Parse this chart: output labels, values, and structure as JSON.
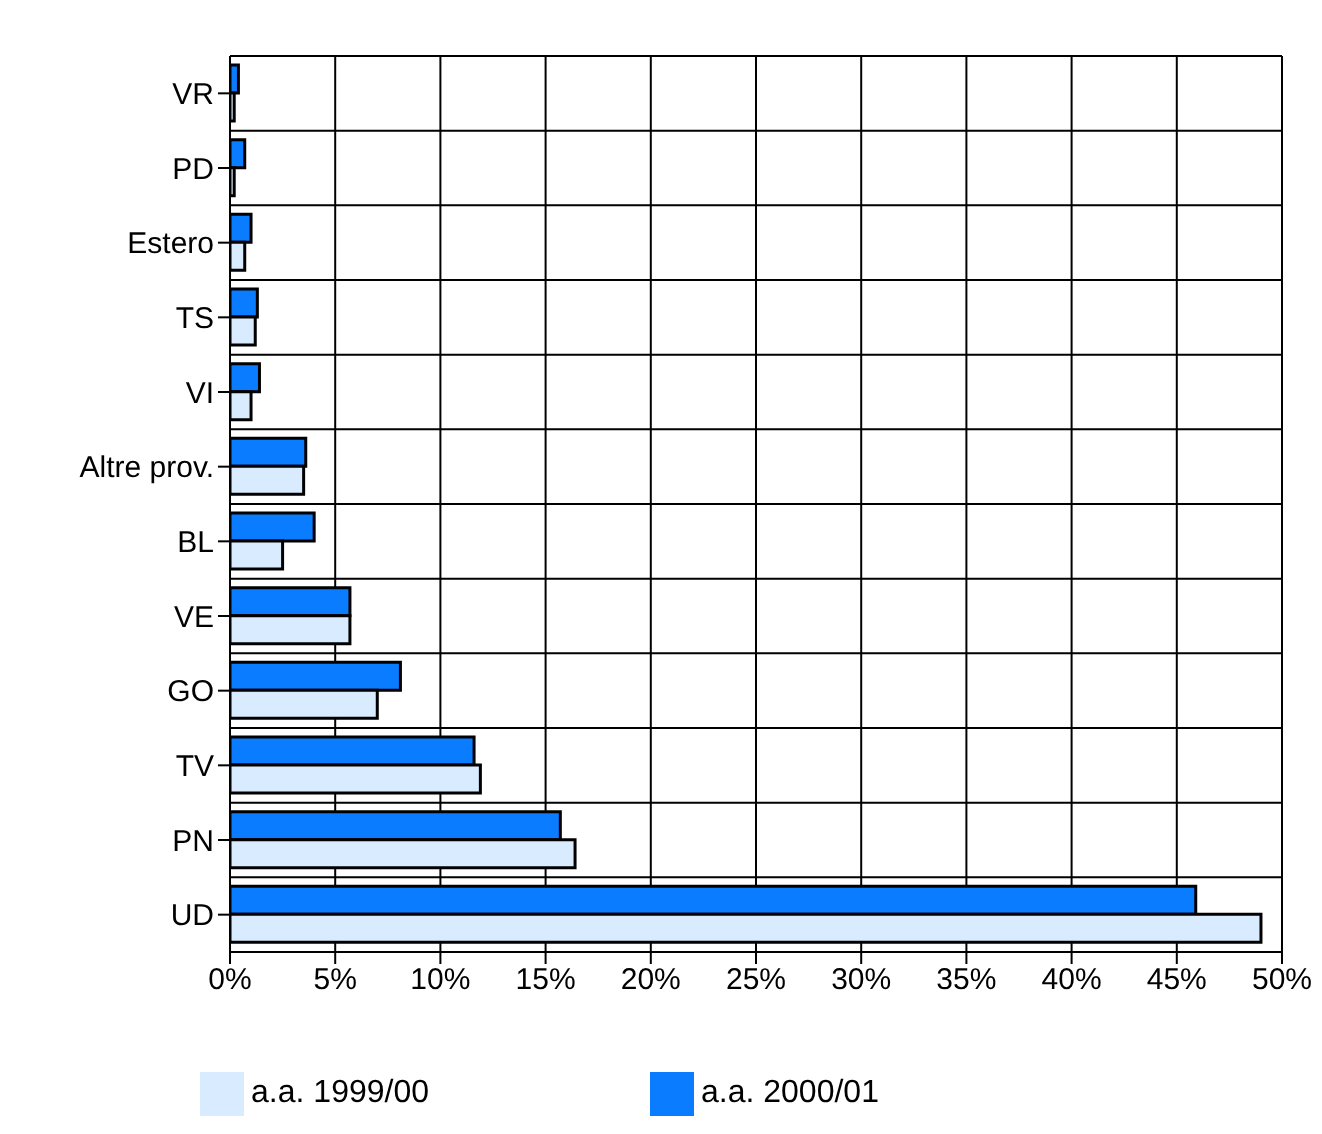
{
  "chart_data": {
    "type": "bar",
    "orientation": "horizontal",
    "categories": [
      "VR",
      "PD",
      "Estero",
      "TS",
      "VI",
      "Altre prov.",
      "BL",
      "VE",
      "GO",
      "TV",
      "PN",
      "UD"
    ],
    "series": [
      {
        "name": "a.a. 1999/00",
        "color": "#d9ecff",
        "values": [
          0.2,
          0.2,
          0.7,
          1.2,
          1.0,
          3.5,
          2.5,
          5.7,
          7.0,
          11.9,
          16.4,
          49.0
        ]
      },
      {
        "name": "a.a. 2000/01",
        "color": "#0a7cff",
        "values": [
          0.4,
          0.7,
          1.0,
          1.3,
          1.4,
          3.6,
          4.0,
          5.7,
          8.1,
          11.6,
          15.7,
          45.9
        ]
      }
    ],
    "xlim": [
      0,
      50
    ],
    "xticks": [
      {
        "value": 0,
        "label": "0%"
      },
      {
        "value": 5,
        "label": "5%"
      },
      {
        "value": 10,
        "label": "10%"
      },
      {
        "value": 15,
        "label": "15%"
      },
      {
        "value": 20,
        "label": "20%"
      },
      {
        "value": 25,
        "label": "25%"
      },
      {
        "value": 30,
        "label": "30%"
      },
      {
        "value": 35,
        "label": "35%"
      },
      {
        "value": 40,
        "label": "40%"
      },
      {
        "value": 45,
        "label": "45%"
      },
      {
        "value": 50,
        "label": "50%"
      }
    ],
    "grid": true,
    "legend": "bottom"
  }
}
